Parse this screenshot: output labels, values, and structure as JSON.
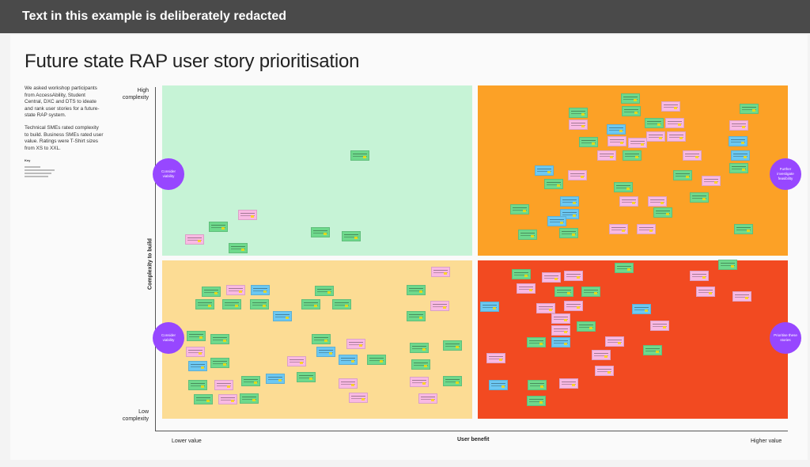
{
  "banner": {
    "text": "Text in this example is deliberately redacted"
  },
  "board": {
    "title": "Future state RAP user story prioritisation",
    "intro": {
      "paragraph1": "We asked workshop participants from AccessAbility, Student Central, DXC and DTS to ideate and rank user stories for a future-state RAP system.",
      "paragraph2": "Technical SMEs rated complexity to build. Business SMEs rated user value. Ratings were T-Shirt sizes from XS to XXL.",
      "key_label": "Key"
    },
    "axes": {
      "y_high": "High complexity",
      "y_low": "Low complexity",
      "y_title": "Complexity to build",
      "x_low": "Lower value",
      "x_high": "Higher value",
      "x_title": "User benefit"
    },
    "circles": {
      "top_left": "Consider viability",
      "bottom_left": "Consider viability",
      "top_right": "Further investigate feasibility",
      "bottom_right": "Prioritise these stories"
    },
    "colors": {
      "top_left": "#c6f3d6",
      "top_right": "#fca126",
      "bottom_left": "#fcdc94",
      "bottom_right": "#f24a21",
      "circle": "#9747ff",
      "note_green": "#6ed98c",
      "note_pink": "#f9b9e3",
      "note_blue": "#6cc8f2"
    }
  }
}
